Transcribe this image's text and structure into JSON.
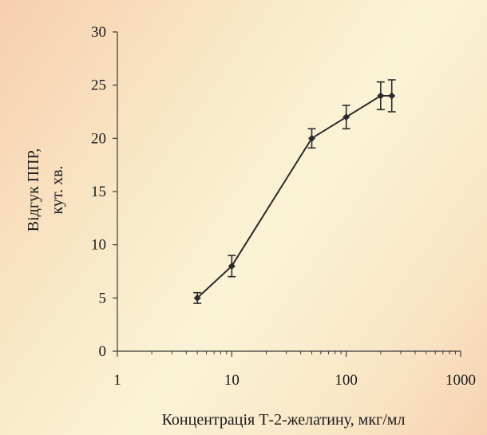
{
  "chart_data": {
    "type": "line",
    "xscale": "log",
    "xlim": [
      1,
      1000
    ],
    "ylim": [
      0,
      30
    ],
    "xticks": [
      1,
      10,
      100,
      1000
    ],
    "yticks": [
      0,
      5,
      10,
      15,
      20,
      25,
      30
    ],
    "xtick_labels": [
      "1",
      "10",
      "100",
      "1000"
    ],
    "ytick_labels": [
      "0",
      "5",
      "10",
      "15",
      "20",
      "25",
      "30"
    ],
    "xlabel": "Концентрація Т-2-желатину, мкг/мл",
    "ylabel_line1": "Відгук ППР,",
    "ylabel_line2": "кут. хв.",
    "grid": false,
    "series": [
      {
        "x": [
          5,
          10,
          50,
          100,
          200,
          250
        ],
        "y": [
          5,
          8,
          20,
          22,
          24,
          24
        ],
        "yerr": [
          0.5,
          1.0,
          0.9,
          1.1,
          1.3,
          1.5
        ],
        "color": "#2a2a2a"
      }
    ]
  }
}
